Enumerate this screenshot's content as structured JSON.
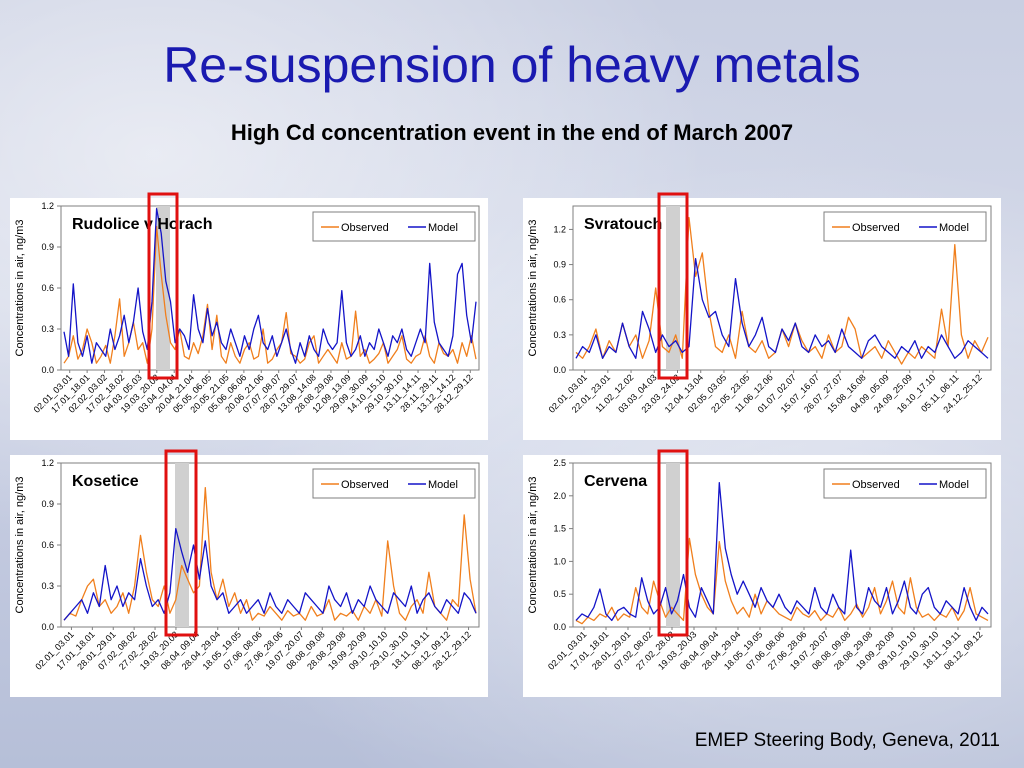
{
  "slide": {
    "title": "Re-suspension of heavy metals",
    "subtitle": "High Cd concentration event in the end of March 2007",
    "footer": "EMEP Steering Body, Geneva, 2011"
  },
  "colors": {
    "observed": "#f07f1d",
    "model": "#1414c8",
    "highlight": "#e01010",
    "shade": "#d0d0d0"
  },
  "chart_data": [
    {
      "type": "line",
      "title": "Rudolice v Horach",
      "ylabel": "Concentrations in air, ng/m3",
      "ylim": [
        0,
        1.2
      ],
      "yticks": [
        "0.0",
        "0.3",
        "0.6",
        "0.9",
        "1.2"
      ],
      "x_tick_labels": [
        "02.01_03.01",
        "17.01_18.01",
        "02.02_03.02",
        "17.02_18.02",
        "04.03_05.03",
        "19.03_20.03",
        "03.04_04.04",
        "20.04_21.04",
        "05.05_06.05",
        "20.05_21.05",
        "05.06_06.06",
        "20.06_21.06",
        "07.07_08.07",
        "28.07_29.07",
        "13.08_14.08",
        "28.08_29.08",
        "12.09_13.09",
        "29.09_30.09",
        "14.10_15.10",
        "29.10_30.10",
        "13.11_14.11",
        "28.11_29.11",
        "13.12_14.12",
        "28.12_29.12"
      ],
      "legend": [
        "Observed",
        "Model"
      ],
      "legend_position": "top-right",
      "event_window": [
        "19.03_20.03",
        "03.04_04.04"
      ],
      "series": [
        {
          "name": "Observed",
          "values": [
            0.05,
            0.1,
            0.25,
            0.08,
            0.15,
            0.3,
            0.2,
            0.05,
            0.1,
            0.18,
            0.05,
            0.25,
            0.52,
            0.1,
            0.2,
            0.35,
            0.15,
            0.2,
            0.05,
            0.3,
            1.05,
            0.7,
            0.4,
            0.2,
            0.15,
            0.3,
            0.1,
            0.08,
            0.2,
            0.12,
            0.25,
            0.48,
            0.15,
            0.4,
            0.1,
            0.05,
            0.2,
            0.1,
            0.05,
            0.15,
            0.2,
            0.08,
            0.1,
            0.3,
            0.05,
            0.08,
            0.15,
            0.2,
            0.42,
            0.12,
            0.1,
            0.05,
            0.08,
            0.2,
            0.25,
            0.05,
            0.1,
            0.15,
            0.1,
            0.05,
            0.2,
            0.08,
            0.1,
            0.43,
            0.1,
            0.15,
            0.05,
            0.08,
            0.12,
            0.2,
            0.05,
            0.1,
            0.15,
            0.25,
            0.08,
            0.05,
            0.1,
            0.12,
            0.25,
            0.1,
            0.05,
            0.2,
            0.12,
            0.1,
            0.15,
            0.05,
            0.2,
            0.1,
            0.25,
            0.08
          ]
        },
        {
          "name": "Model",
          "values": [
            0.28,
            0.1,
            0.63,
            0.2,
            0.1,
            0.25,
            0.05,
            0.2,
            0.15,
            0.1,
            0.3,
            0.15,
            0.25,
            0.4,
            0.2,
            0.35,
            0.6,
            0.28,
            0.15,
            0.5,
            1.18,
            1.0,
            0.65,
            0.5,
            0.2,
            0.3,
            0.25,
            0.15,
            0.55,
            0.3,
            0.2,
            0.45,
            0.25,
            0.35,
            0.2,
            0.15,
            0.3,
            0.2,
            0.1,
            0.25,
            0.15,
            0.3,
            0.4,
            0.2,
            0.15,
            0.25,
            0.1,
            0.2,
            0.3,
            0.15,
            0.05,
            0.2,
            0.1,
            0.25,
            0.15,
            0.1,
            0.3,
            0.2,
            0.15,
            0.2,
            0.58,
            0.2,
            0.1,
            0.15,
            0.25,
            0.1,
            0.2,
            0.15,
            0.3,
            0.2,
            0.1,
            0.25,
            0.2,
            0.3,
            0.15,
            0.1,
            0.2,
            0.3,
            0.2,
            0.78,
            0.35,
            0.2,
            0.15,
            0.1,
            0.25,
            0.7,
            0.78,
            0.4,
            0.2,
            0.5
          ]
        }
      ]
    },
    {
      "type": "line",
      "title": "Svratouch",
      "ylabel": "Concentrations in air, ng/m3",
      "ylim": [
        0,
        1.4
      ],
      "yticks": [
        "0.0",
        "0.3",
        "0.6",
        "0.9",
        "1.2"
      ],
      "x_tick_labels": [
        "02.01_03.01",
        "22.01_23.01",
        "11.02_12.02",
        "03.03_04.03",
        "23.03_24.03",
        "12.04_13.04",
        "02.05_03.05",
        "22.05_23.05",
        "11.06_12.06",
        "01.07_02.07",
        "15.07_16.07",
        "26.07_27.07",
        "15.08_16.08",
        "04.09_05.09",
        "24.09_25.09",
        "16.10_17.10",
        "05.11_06.11",
        "24.12_25.12"
      ],
      "legend": [
        "Observed",
        "Model"
      ],
      "legend_position": "top-right",
      "event_window": [
        "23.03_24.03",
        "12.04_13.04"
      ],
      "series": [
        {
          "name": "Observed",
          "values": [
            0.15,
            0.1,
            0.2,
            0.35,
            0.1,
            0.25,
            0.15,
            0.4,
            0.2,
            0.3,
            0.1,
            0.25,
            0.7,
            0.2,
            0.15,
            0.3,
            0.1,
            1.3,
            0.8,
            1.0,
            0.5,
            0.2,
            0.15,
            0.3,
            0.1,
            0.5,
            0.2,
            0.15,
            0.25,
            0.1,
            0.15,
            0.35,
            0.2,
            0.4,
            0.25,
            0.15,
            0.2,
            0.1,
            0.3,
            0.15,
            0.2,
            0.45,
            0.35,
            0.1,
            0.15,
            0.2,
            0.1,
            0.25,
            0.15,
            0.05,
            0.15,
            0.1,
            0.2,
            0.15,
            0.1,
            0.52,
            0.2,
            1.07,
            0.3,
            0.1,
            0.25,
            0.15,
            0.28
          ]
        },
        {
          "name": "Model",
          "values": [
            0.1,
            0.2,
            0.15,
            0.3,
            0.1,
            0.2,
            0.15,
            0.4,
            0.2,
            0.1,
            0.5,
            0.35,
            0.15,
            0.3,
            0.2,
            0.25,
            0.15,
            0.2,
            0.95,
            0.6,
            0.45,
            0.5,
            0.3,
            0.2,
            0.78,
            0.4,
            0.2,
            0.3,
            0.45,
            0.2,
            0.15,
            0.35,
            0.25,
            0.4,
            0.2,
            0.15,
            0.3,
            0.2,
            0.25,
            0.15,
            0.35,
            0.2,
            0.15,
            0.1,
            0.25,
            0.3,
            0.2,
            0.15,
            0.1,
            0.2,
            0.15,
            0.25,
            0.1,
            0.2,
            0.15,
            0.3,
            0.2,
            0.1,
            0.15,
            0.25,
            0.2,
            0.15,
            0.1
          ]
        }
      ]
    },
    {
      "type": "line",
      "title": "Kosetice",
      "ylabel": "Concentrations in air, ng/m3",
      "ylim": [
        0,
        1.2
      ],
      "yticks": [
        "0.0",
        "0.3",
        "0.6",
        "0.9",
        "1.2"
      ],
      "x_tick_labels": [
        "02.01_03.01",
        "17.01_18.01",
        "28.01_29.01",
        "07.02_08.02",
        "27.02_28.02",
        "19.03_20.03",
        "08.04_09.04",
        "28.04_29.04",
        "18.05_19.05",
        "07.06_08.06",
        "27.06_28.06",
        "19.07_20.07",
        "08.08_09.08",
        "28.08_29.08",
        "19.09_20.09",
        "09.10_10.10",
        "29.10_30.10",
        "18.11_19.11",
        "08.12_09.12",
        "28.12_29.12"
      ],
      "legend": [
        "Observed",
        "Model"
      ],
      "legend_position": "top-right",
      "event_window": [
        "19.03_20.03",
        "08.04_09.04"
      ],
      "series": [
        {
          "name": "Observed",
          "values": [
            0.05,
            0.1,
            0.08,
            0.2,
            0.3,
            0.35,
            0.15,
            0.2,
            0.1,
            0.15,
            0.25,
            0.1,
            0.3,
            0.67,
            0.4,
            0.2,
            0.15,
            0.3,
            0.1,
            0.2,
            0.45,
            0.35,
            0.25,
            0.3,
            1.02,
            0.4,
            0.2,
            0.35,
            0.15,
            0.25,
            0.1,
            0.2,
            0.05,
            0.1,
            0.08,
            0.15,
            0.1,
            0.05,
            0.12,
            0.08,
            0.1,
            0.05,
            0.15,
            0.08,
            0.1,
            0.2,
            0.05,
            0.1,
            0.08,
            0.12,
            0.05,
            0.15,
            0.1,
            0.2,
            0.08,
            0.63,
            0.3,
            0.1,
            0.05,
            0.15,
            0.2,
            0.1,
            0.4,
            0.15,
            0.1,
            0.05,
            0.2,
            0.15,
            0.82,
            0.35,
            0.1
          ]
        },
        {
          "name": "Model",
          "values": [
            0.05,
            0.1,
            0.15,
            0.2,
            0.1,
            0.25,
            0.15,
            0.45,
            0.2,
            0.3,
            0.15,
            0.25,
            0.2,
            0.5,
            0.3,
            0.15,
            0.2,
            0.1,
            0.25,
            0.72,
            0.55,
            0.4,
            0.6,
            0.35,
            0.63,
            0.3,
            0.2,
            0.25,
            0.1,
            0.15,
            0.2,
            0.1,
            0.15,
            0.2,
            0.1,
            0.25,
            0.15,
            0.1,
            0.2,
            0.15,
            0.1,
            0.25,
            0.2,
            0.15,
            0.1,
            0.3,
            0.2,
            0.15,
            0.25,
            0.1,
            0.2,
            0.15,
            0.3,
            0.2,
            0.15,
            0.1,
            0.25,
            0.2,
            0.15,
            0.3,
            0.1,
            0.2,
            0.25,
            0.15,
            0.1,
            0.2,
            0.15,
            0.1,
            0.25,
            0.2,
            0.1
          ]
        }
      ]
    },
    {
      "type": "line",
      "title": "Cervena",
      "ylabel": "Concentrations in air, ng/m3",
      "ylim": [
        0,
        2.5
      ],
      "yticks": [
        "0.0",
        "0.5",
        "1.0",
        "1.5",
        "2.0",
        "2.5"
      ],
      "x_tick_labels": [
        "02.01_03.01",
        "17.01_18.01",
        "28.01_29.01",
        "07.02_08.02",
        "27.02_28.02",
        "19.03_20.03",
        "08.04_09.04",
        "28.04_29.04",
        "18.05_19.05",
        "07.06_08.06",
        "27.06_28.06",
        "19.07_20.07",
        "08.08_09.08",
        "28.08_29.08",
        "19.09_20.09",
        "09.10_10.10",
        "29.10_30.10",
        "18.11_19.11",
        "08.12_09.12"
      ],
      "legend": [
        "Observed",
        "Model"
      ],
      "legend_position": "top-right",
      "event_window": [
        "27.02_28.02",
        "19.03_20.03"
      ],
      "series": [
        {
          "name": "Observed",
          "values": [
            0.1,
            0.05,
            0.15,
            0.1,
            0.2,
            0.15,
            0.3,
            0.1,
            0.2,
            0.15,
            0.6,
            0.3,
            0.2,
            0.7,
            0.4,
            0.15,
            0.3,
            0.2,
            0.1,
            1.35,
            0.8,
            0.5,
            0.3,
            0.2,
            1.3,
            0.7,
            0.4,
            0.2,
            0.3,
            0.15,
            0.5,
            0.2,
            0.4,
            0.3,
            0.2,
            0.15,
            0.1,
            0.3,
            0.2,
            0.15,
            0.25,
            0.1,
            0.2,
            0.15,
            0.3,
            0.1,
            0.2,
            0.35,
            0.15,
            0.3,
            0.6,
            0.2,
            0.4,
            0.7,
            0.3,
            0.2,
            0.75,
            0.3,
            0.15,
            0.2,
            0.1,
            0.2,
            0.15,
            0.3,
            0.1,
            0.25,
            0.6,
            0.2,
            0.15,
            0.1
          ]
        },
        {
          "name": "Model",
          "values": [
            0.1,
            0.2,
            0.15,
            0.3,
            0.58,
            0.2,
            0.1,
            0.25,
            0.3,
            0.2,
            0.15,
            0.75,
            0.4,
            0.2,
            0.3,
            0.6,
            0.2,
            0.4,
            0.8,
            0.3,
            0.15,
            0.6,
            0.4,
            0.2,
            2.2,
            1.2,
            0.8,
            0.5,
            0.7,
            0.5,
            0.3,
            0.6,
            0.4,
            0.3,
            0.5,
            0.3,
            0.2,
            0.4,
            0.3,
            0.2,
            0.6,
            0.3,
            0.2,
            0.5,
            0.3,
            0.2,
            1.17,
            0.3,
            0.2,
            0.6,
            0.4,
            0.3,
            0.6,
            0.2,
            0.4,
            0.7,
            0.3,
            0.2,
            0.5,
            0.6,
            0.3,
            0.2,
            0.4,
            0.3,
            0.2,
            0.6,
            0.3,
            0.1,
            0.3,
            0.2
          ]
        }
      ]
    }
  ]
}
